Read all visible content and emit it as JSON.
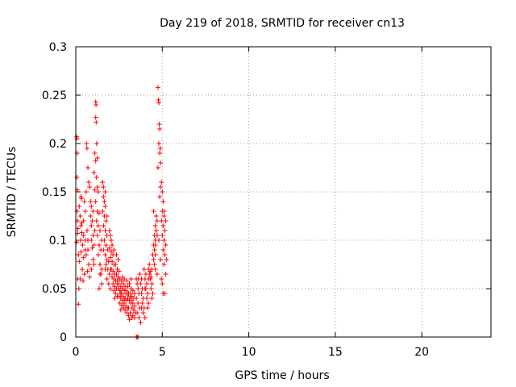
{
  "chart_data": {
    "type": "scatter",
    "title": "Day 219 of 2018, SRMTID for receiver cn13",
    "xlabel": "GPS time / hours",
    "ylabel": "SRMTID / TECUs",
    "xlim": [
      0,
      24
    ],
    "ylim": [
      0,
      0.3
    ],
    "xticks": [
      0,
      5,
      10,
      15,
      20
    ],
    "xtick_labels": [
      "0",
      "5",
      "10",
      "15",
      "20"
    ],
    "yticks": [
      0,
      0.05,
      0.1,
      0.15,
      0.2,
      0.25,
      0.3
    ],
    "ytick_labels": [
      "0",
      "0.05",
      "0.1",
      "0.15",
      "0.2",
      "0.25",
      "0.3"
    ],
    "grid": true,
    "marker": "+",
    "color": "#ff0000",
    "series": [
      {
        "name": "SRMTID",
        "points": [
          [
            0.05,
            0.207
          ],
          [
            0.07,
            0.205
          ],
          [
            0.08,
            0.19
          ],
          [
            0.06,
            0.165
          ],
          [
            0.1,
            0.152
          ],
          [
            0.08,
            0.13
          ],
          [
            0.1,
            0.12
          ],
          [
            0.12,
            0.112
          ],
          [
            0.05,
            0.098
          ],
          [
            0.15,
            0.085
          ],
          [
            0.2,
            0.078
          ],
          [
            0.12,
            0.06
          ],
          [
            0.18,
            0.05
          ],
          [
            0.15,
            0.034
          ],
          [
            0.1,
            0.107
          ],
          [
            0.2,
            0.135
          ],
          [
            0.25,
            0.125
          ],
          [
            0.3,
            0.115
          ],
          [
            0.35,
            0.108
          ],
          [
            0.28,
            0.1
          ],
          [
            0.4,
            0.095
          ],
          [
            0.3,
            0.088
          ],
          [
            0.45,
            0.082
          ],
          [
            0.38,
            0.07
          ],
          [
            0.5,
            0.065
          ],
          [
            0.25,
            0.06
          ],
          [
            0.42,
            0.058
          ],
          [
            0.33,
            0.143
          ],
          [
            0.45,
            0.12
          ],
          [
            0.55,
            0.13
          ],
          [
            0.5,
            0.14
          ],
          [
            0.6,
            0.15
          ],
          [
            0.55,
            0.1
          ],
          [
            0.65,
            0.11
          ],
          [
            0.7,
            0.09
          ],
          [
            0.6,
            0.085
          ],
          [
            0.75,
            0.075
          ],
          [
            0.68,
            0.068
          ],
          [
            0.8,
            0.062
          ],
          [
            0.62,
            0.2
          ],
          [
            0.65,
            0.195
          ],
          [
            0.7,
            0.175
          ],
          [
            0.75,
            0.16
          ],
          [
            0.8,
            0.155
          ],
          [
            0.85,
            0.14
          ],
          [
            0.9,
            0.135
          ],
          [
            0.95,
            0.12
          ],
          [
            0.85,
            0.125
          ],
          [
            0.9,
            0.1
          ],
          [
            1.0,
            0.105
          ],
          [
            0.95,
            0.092
          ],
          [
            1.0,
            0.08
          ],
          [
            1.05,
            0.075
          ],
          [
            0.9,
            0.07
          ],
          [
            1.1,
            0.11
          ],
          [
            1.15,
            0.243
          ],
          [
            1.17,
            0.24
          ],
          [
            1.15,
            0.227
          ],
          [
            1.18,
            0.222
          ],
          [
            1.1,
            0.19
          ],
          [
            1.2,
            0.2
          ],
          [
            1.25,
            0.185
          ],
          [
            1.15,
            0.182
          ],
          [
            1.05,
            0.17
          ],
          [
            1.2,
            0.165
          ],
          [
            1.25,
            0.155
          ],
          [
            1.1,
            0.152
          ],
          [
            1.3,
            0.15
          ],
          [
            1.15,
            0.14
          ],
          [
            1.25,
            0.13
          ],
          [
            1.35,
            0.128
          ],
          [
            1.2,
            0.12
          ],
          [
            1.3,
            0.115
          ],
          [
            1.4,
            0.11
          ],
          [
            1.25,
            0.105
          ],
          [
            1.35,
            0.095
          ],
          [
            1.45,
            0.09
          ],
          [
            1.3,
            0.085
          ],
          [
            1.4,
            0.075
          ],
          [
            1.5,
            0.07
          ],
          [
            1.45,
            0.065
          ],
          [
            1.5,
            0.055
          ],
          [
            1.35,
            0.05
          ],
          [
            1.55,
            0.16
          ],
          [
            1.6,
            0.145
          ],
          [
            1.65,
            0.14
          ],
          [
            1.7,
            0.135
          ],
          [
            1.55,
            0.13
          ],
          [
            1.65,
            0.125
          ],
          [
            1.75,
            0.12
          ],
          [
            1.6,
            0.115
          ],
          [
            1.7,
            0.11
          ],
          [
            1.8,
            0.105
          ],
          [
            1.65,
            0.1
          ],
          [
            1.75,
            0.095
          ],
          [
            1.85,
            0.09
          ],
          [
            1.7,
            0.085
          ],
          [
            1.8,
            0.08
          ],
          [
            1.9,
            0.078
          ],
          [
            1.75,
            0.075
          ],
          [
            1.85,
            0.07
          ],
          [
            1.95,
            0.065
          ],
          [
            1.8,
            0.06
          ],
          [
            1.9,
            0.055
          ],
          [
            2.0,
            0.05
          ],
          [
            1.6,
            0.155
          ],
          [
            1.7,
            0.15
          ],
          [
            1.8,
            0.125
          ],
          [
            1.95,
            0.11
          ],
          [
            2.0,
            0.105
          ],
          [
            2.05,
            0.1
          ],
          [
            2.1,
            0.095
          ],
          [
            1.95,
            0.092
          ],
          [
            2.05,
            0.088
          ],
          [
            2.15,
            0.085
          ],
          [
            2.0,
            0.082
          ],
          [
            2.1,
            0.078
          ],
          [
            2.2,
            0.075
          ],
          [
            2.05,
            0.07
          ],
          [
            2.15,
            0.068
          ],
          [
            2.25,
            0.065
          ],
          [
            2.1,
            0.062
          ],
          [
            2.2,
            0.06
          ],
          [
            2.3,
            0.058
          ],
          [
            2.15,
            0.055
          ],
          [
            2.25,
            0.052
          ],
          [
            2.35,
            0.05
          ],
          [
            2.2,
            0.048
          ],
          [
            2.3,
            0.045
          ],
          [
            2.4,
            0.042
          ],
          [
            2.25,
            0.04
          ],
          [
            2.35,
            0.085
          ],
          [
            2.45,
            0.08
          ],
          [
            2.3,
            0.075
          ],
          [
            2.4,
            0.07
          ],
          [
            2.5,
            0.068
          ],
          [
            2.35,
            0.065
          ],
          [
            2.45,
            0.062
          ],
          [
            2.55,
            0.06
          ],
          [
            2.4,
            0.058
          ],
          [
            2.5,
            0.055
          ],
          [
            2.6,
            0.052
          ],
          [
            2.45,
            0.05
          ],
          [
            2.55,
            0.048
          ],
          [
            2.65,
            0.045
          ],
          [
            2.5,
            0.042
          ],
          [
            2.6,
            0.04
          ],
          [
            2.7,
            0.038
          ],
          [
            2.55,
            0.035
          ],
          [
            2.65,
            0.033
          ],
          [
            2.75,
            0.03
          ],
          [
            2.6,
            0.028
          ],
          [
            2.7,
            0.062
          ],
          [
            2.8,
            0.06
          ],
          [
            2.65,
            0.058
          ],
          [
            2.75,
            0.055
          ],
          [
            2.85,
            0.052
          ],
          [
            2.7,
            0.05
          ],
          [
            2.8,
            0.048
          ],
          [
            2.9,
            0.045
          ],
          [
            2.75,
            0.042
          ],
          [
            2.85,
            0.04
          ],
          [
            2.95,
            0.038
          ],
          [
            2.8,
            0.035
          ],
          [
            2.9,
            0.032
          ],
          [
            3.0,
            0.03
          ],
          [
            2.85,
            0.028
          ],
          [
            2.95,
            0.025
          ],
          [
            3.05,
            0.022
          ],
          [
            2.9,
            0.048
          ],
          [
            3.0,
            0.052
          ],
          [
            3.1,
            0.055
          ],
          [
            2.95,
            0.058
          ],
          [
            3.05,
            0.045
          ],
          [
            3.15,
            0.042
          ],
          [
            3.0,
            0.04
          ],
          [
            3.1,
            0.038
          ],
          [
            3.2,
            0.035
          ],
          [
            3.05,
            0.03
          ],
          [
            3.15,
            0.025
          ],
          [
            3.25,
            0.02
          ],
          [
            3.1,
            0.018
          ],
          [
            3.2,
            0.05
          ],
          [
            3.3,
            0.048
          ],
          [
            3.15,
            0.045
          ],
          [
            3.25,
            0.042
          ],
          [
            3.35,
            0.04
          ],
          [
            3.2,
            0.038
          ],
          [
            3.3,
            0.035
          ],
          [
            3.4,
            0.032
          ],
          [
            3.25,
            0.03
          ],
          [
            3.35,
            0.028
          ],
          [
            3.45,
            0.025
          ],
          [
            3.3,
            0.022
          ],
          [
            3.4,
            0.02
          ],
          [
            3.5,
            0.06
          ],
          [
            3.55,
            0.055
          ],
          [
            3.6,
            0.05
          ],
          [
            3.65,
            0.045
          ],
          [
            3.5,
            0.04
          ],
          [
            3.6,
            0.035
          ],
          [
            3.7,
            0.03
          ],
          [
            3.55,
            0.025
          ],
          [
            3.65,
            0.02
          ],
          [
            3.75,
            0.015
          ],
          [
            3.7,
            0.065
          ],
          [
            3.8,
            0.06
          ],
          [
            3.75,
            0.055
          ],
          [
            3.85,
            0.05
          ],
          [
            3.8,
            0.045
          ],
          [
            3.9,
            0.04
          ],
          [
            3.85,
            0.035
          ],
          [
            3.95,
            0.03
          ],
          [
            3.9,
            0.025
          ],
          [
            4.0,
            0.02
          ],
          [
            3.95,
            0.07
          ],
          [
            4.05,
            0.065
          ],
          [
            4.0,
            0.06
          ],
          [
            4.1,
            0.055
          ],
          [
            4.05,
            0.05
          ],
          [
            4.15,
            0.045
          ],
          [
            4.1,
            0.04
          ],
          [
            4.2,
            0.035
          ],
          [
            4.15,
            0.03
          ],
          [
            4.25,
            0.075
          ],
          [
            4.2,
            0.07
          ],
          [
            4.3,
            0.068
          ],
          [
            4.25,
            0.065
          ],
          [
            4.35,
            0.062
          ],
          [
            4.3,
            0.06
          ],
          [
            4.4,
            0.055
          ],
          [
            4.35,
            0.05
          ],
          [
            4.45,
            0.045
          ],
          [
            4.4,
            0.04
          ],
          [
            4.5,
            0.08
          ],
          [
            4.45,
            0.085
          ],
          [
            4.55,
            0.09
          ],
          [
            4.5,
            0.095
          ],
          [
            4.6,
            0.1
          ],
          [
            4.55,
            0.105
          ],
          [
            4.65,
            0.11
          ],
          [
            4.6,
            0.115
          ],
          [
            4.7,
            0.12
          ],
          [
            4.65,
            0.125
          ],
          [
            4.5,
            0.13
          ],
          [
            4.55,
            0.075
          ],
          [
            4.6,
            0.07
          ],
          [
            4.7,
            0.065
          ],
          [
            4.75,
            0.258
          ],
          [
            4.78,
            0.245
          ],
          [
            4.8,
            0.242
          ],
          [
            4.82,
            0.22
          ],
          [
            4.85,
            0.215
          ],
          [
            4.8,
            0.2
          ],
          [
            4.88,
            0.195
          ],
          [
            4.85,
            0.19
          ],
          [
            4.9,
            0.18
          ],
          [
            4.75,
            0.175
          ],
          [
            4.95,
            0.16
          ],
          [
            4.9,
            0.155
          ],
          [
            5.0,
            0.15
          ],
          [
            4.85,
            0.145
          ],
          [
            5.05,
            0.14
          ],
          [
            5.0,
            0.13
          ],
          [
            5.1,
            0.125
          ],
          [
            4.95,
            0.12
          ],
          [
            5.05,
            0.115
          ],
          [
            5.15,
            0.11
          ],
          [
            5.0,
            0.105
          ],
          [
            5.1,
            0.1
          ],
          [
            5.2,
            0.095
          ],
          [
            5.05,
            0.09
          ],
          [
            5.15,
            0.085
          ],
          [
            5.25,
            0.08
          ],
          [
            5.1,
            0.075
          ],
          [
            5.2,
            0.065
          ],
          [
            5.0,
            0.055
          ],
          [
            5.05,
            0.045
          ],
          [
            5.15,
            0.045
          ],
          [
            4.95,
            0.06
          ],
          [
            4.7,
            0.105
          ],
          [
            4.6,
            0.095
          ],
          [
            3.5,
            0.0
          ],
          [
            3.55,
            0.0
          ],
          [
            3.6,
            0.0
          ],
          [
            0.3,
            0.145
          ],
          [
            0.35,
            0.118
          ],
          [
            0.45,
            0.105
          ],
          [
            0.55,
            0.09
          ],
          [
            0.7,
            0.1
          ],
          [
            0.9,
            0.115
          ],
          [
            1.0,
            0.13
          ],
          [
            1.05,
            0.095
          ],
          [
            1.4,
            0.065
          ],
          [
            1.5,
            0.1
          ],
          [
            1.6,
            0.09
          ],
          [
            1.7,
            0.07
          ],
          [
            2.0,
            0.07
          ],
          [
            2.2,
            0.09
          ],
          [
            2.4,
            0.055
          ],
          [
            2.6,
            0.045
          ],
          [
            2.8,
            0.038
          ],
          [
            3.0,
            0.045
          ],
          [
            3.2,
            0.06
          ],
          [
            3.4,
            0.045
          ],
          [
            3.6,
            0.06
          ],
          [
            3.8,
            0.03
          ],
          [
            4.0,
            0.05
          ],
          [
            4.2,
            0.06
          ],
          [
            4.4,
            0.07
          ],
          [
            4.6,
            0.085
          ],
          [
            4.8,
            0.1
          ],
          [
            5.1,
            0.13
          ],
          [
            5.2,
            0.12
          ],
          [
            4.9,
            0.08
          ]
        ]
      }
    ]
  }
}
